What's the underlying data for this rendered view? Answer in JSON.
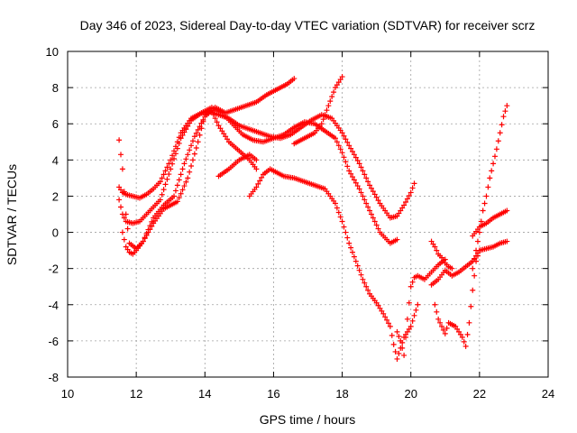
{
  "chart_data": {
    "type": "scatter",
    "title": "Day 346 of 2023, Sidereal Day-to-day VTEC variation (SDTVAR) for receiver scrz",
    "xlabel": "GPS time / hours",
    "ylabel": "SDTVAR / TECUs",
    "xlim": [
      10,
      24
    ],
    "ylim": [
      -8,
      10
    ],
    "xticks": [
      "10",
      "12",
      "14",
      "16",
      "18",
      "20",
      "22",
      "24"
    ],
    "yticks": [
      "-8",
      "-6",
      "-4",
      "-2",
      "0",
      "2",
      "4",
      "6",
      "8",
      "10"
    ],
    "grid": true,
    "marker": "plus",
    "color": "#ff0000",
    "series": [
      {
        "x": [
          11.5,
          11.6,
          11.7,
          11.9,
          12.1,
          12.3,
          12.5,
          12.7,
          13.0,
          13.3,
          13.6,
          13.9,
          14.1,
          14.4,
          14.7,
          15.0,
          15.3,
          15.6,
          15.9,
          16.2,
          16.5,
          16.8,
          17.1,
          17.4,
          17.7,
          18.0,
          18.2,
          18.5,
          18.8,
          19.1,
          19.4,
          19.6,
          19.8,
          20.0,
          20.1
        ],
        "y": [
          2.5,
          2.2,
          2.1,
          2.0,
          1.9,
          2.1,
          2.4,
          2.8,
          4.0,
          5.5,
          6.3,
          6.6,
          6.7,
          6.5,
          6.3,
          5.9,
          5.7,
          5.5,
          5.3,
          5.2,
          5.4,
          5.8,
          6.2,
          6.5,
          6.3,
          5.5,
          4.8,
          3.8,
          2.6,
          1.6,
          0.8,
          0.9,
          1.5,
          2.2,
          2.7
        ]
      },
      {
        "x": [
          11.5,
          11.6,
          11.7,
          11.9,
          12.1,
          12.3,
          12.5,
          12.7,
          13.0,
          13.3,
          13.6,
          13.9,
          14.2,
          14.5,
          14.8,
          15.1,
          15.4,
          15.7,
          16.0,
          16.3,
          16.6,
          16.9,
          17.2,
          17.5,
          17.8,
          18.0,
          18.2,
          18.5,
          18.8,
          19.1,
          19.4,
          19.6
        ],
        "y": [
          1.8,
          1.0,
          0.6,
          0.5,
          0.6,
          1.0,
          1.4,
          1.8,
          3.5,
          5.2,
          6.2,
          6.6,
          6.9,
          6.6,
          6.0,
          5.4,
          5.1,
          5.0,
          5.2,
          5.4,
          5.8,
          6.1,
          6.0,
          5.6,
          5.2,
          4.4,
          3.4,
          2.4,
          1.2,
          0.0,
          -0.6,
          -0.4
        ]
      },
      {
        "x": [
          11.5,
          11.6,
          11.7,
          11.8,
          12.0,
          12.2,
          12.5,
          12.8,
          13.2,
          13.5,
          13.8,
          14.0,
          14.2,
          14.4,
          14.7,
          15.0,
          15.3,
          15.5
        ],
        "y": [
          5.1,
          3.5,
          1.0,
          -0.6,
          -0.9,
          -0.5,
          0.5,
          1.3,
          1.7,
          3.0,
          5.0,
          6.5,
          6.7,
          5.9,
          5.0,
          4.5,
          4.0,
          3.5
        ]
      },
      {
        "x": [
          11.6,
          11.7,
          11.8,
          11.9,
          12.0,
          12.2,
          12.5,
          12.8,
          13.1,
          13.4,
          13.7,
          14.0,
          14.3,
          14.6,
          14.9,
          15.2,
          15.5,
          15.8,
          16.1,
          16.4,
          16.6
        ],
        "y": [
          0.0,
          -0.8,
          -1.1,
          -1.2,
          -1.0,
          -0.5,
          0.8,
          1.5,
          2.0,
          3.8,
          5.3,
          6.4,
          6.9,
          6.6,
          6.8,
          7.0,
          7.2,
          7.6,
          7.9,
          8.2,
          8.5
        ]
      },
      {
        "x": [
          14.4,
          14.7,
          15.0,
          15.3,
          15.5
        ],
        "y": [
          3.1,
          3.5,
          4.0,
          4.3,
          4.0
        ]
      },
      {
        "x": [
          15.3,
          15.5,
          15.7,
          15.9,
          16.1,
          16.3,
          16.6,
          16.9,
          17.2,
          17.5,
          17.8,
          18.0,
          18.2,
          18.4,
          18.6,
          18.8,
          19.0,
          19.2,
          19.4,
          19.5,
          19.6,
          19.7,
          19.8,
          20.0,
          20.2
        ],
        "y": [
          2.0,
          2.5,
          3.2,
          3.5,
          3.3,
          3.1,
          3.0,
          2.8,
          2.6,
          2.4,
          1.6,
          0.6,
          -0.6,
          -1.6,
          -2.6,
          -3.4,
          -3.9,
          -4.5,
          -5.2,
          -6.2,
          -7.0,
          -6.4,
          -5.8,
          -5.2,
          -4.0
        ]
      },
      {
        "x": [
          16.6,
          16.8,
          17.0,
          17.2,
          17.4,
          17.6,
          17.8,
          18.0
        ],
        "y": [
          4.9,
          5.1,
          5.3,
          5.5,
          6.0,
          7.0,
          8.0,
          8.6
        ]
      },
      {
        "x": [
          19.6,
          19.7,
          19.8,
          19.9,
          20.0,
          20.1,
          20.2,
          20.4,
          20.6,
          20.8,
          21.0
        ],
        "y": [
          -5.5,
          -6.0,
          -6.8,
          -4.8,
          -3.0,
          -2.5,
          -2.4,
          -2.6,
          -2.2,
          -1.8,
          -1.5
        ]
      },
      {
        "x": [
          20.7,
          20.8,
          20.9,
          21.0,
          21.1,
          21.3,
          21.5,
          21.6,
          21.7,
          21.8,
          21.9,
          22.0
        ],
        "y": [
          -4.0,
          -4.8,
          -5.2,
          -5.6,
          -5.0,
          -5.2,
          -5.8,
          -6.3,
          -5.0,
          -3.2,
          -1.6,
          -1.0
        ]
      },
      {
        "x": [
          20.6,
          20.8,
          21.0,
          21.2,
          21.4,
          21.6,
          21.8,
          22.0,
          22.2,
          22.4,
          22.6,
          22.8
        ],
        "y": [
          -2.9,
          -2.6,
          -2.1,
          -2.4,
          -2.2,
          -1.9,
          -1.6,
          -1.0,
          -0.9,
          -0.8,
          -0.6,
          -0.5
        ]
      },
      {
        "x": [
          20.6,
          20.7,
          20.8,
          20.9,
          21.0,
          21.1,
          21.2
        ],
        "y": [
          -0.5,
          -0.8,
          -1.2,
          -1.4,
          -1.7,
          -1.9,
          -2.0
        ]
      },
      {
        "x": [
          21.8,
          22.0,
          22.2,
          22.4,
          22.6,
          22.8
        ],
        "y": [
          -0.2,
          0.3,
          0.5,
          0.8,
          1.0,
          1.2
        ]
      },
      {
        "x": [
          21.8,
          21.9,
          22.0,
          22.1,
          22.2,
          22.3,
          22.4,
          22.5,
          22.6,
          22.7,
          22.8
        ],
        "y": [
          -2.0,
          -1.0,
          0.0,
          1.2,
          2.0,
          3.0,
          3.8,
          4.6,
          5.5,
          6.4,
          7.0
        ]
      }
    ]
  }
}
